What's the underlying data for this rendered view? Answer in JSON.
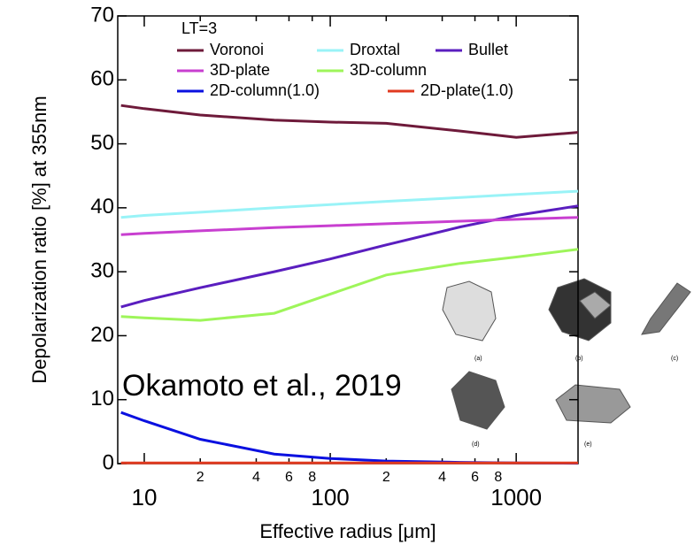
{
  "chart_data": {
    "type": "line",
    "x_label": "Effective radius [μm]",
    "y_label": "Depolarization ratio [%] at 355nm",
    "legend_title": "LT=3",
    "annotation": "Okamoto et al., 2019",
    "crystal_labels": [
      "(a)",
      "(b)",
      "(c)",
      "(d)",
      "(e)"
    ],
    "log_x": true,
    "xlim": [
      7.2,
      2150
    ],
    "ylim": [
      0,
      70
    ],
    "xticks": [
      10,
      {
        "value": 20,
        "label": "2"
      },
      {
        "value": 40,
        "label": "4"
      },
      {
        "value": 60,
        "label": "6"
      },
      {
        "value": 80,
        "label": "8"
      },
      100,
      {
        "value": 200,
        "label": "2"
      },
      {
        "value": 400,
        "label": "4"
      },
      {
        "value": 600,
        "label": "6"
      },
      {
        "value": 800,
        "label": "8"
      },
      1000
    ],
    "yticks": [
      0,
      10,
      20,
      30,
      40,
      50,
      60,
      70
    ],
    "x": [
      7.5,
      10,
      20,
      50,
      100,
      200,
      500,
      1000,
      2150
    ],
    "series": [
      {
        "name": "Voronoi",
        "color": "#6e1a3a",
        "values": [
          56,
          55.5,
          54.5,
          53.7,
          53.4,
          53.2,
          52,
          51,
          51.8
        ]
      },
      {
        "name": "Droxtal",
        "color": "#99f3f7",
        "values": [
          38.5,
          38.8,
          39.3,
          40,
          40.5,
          41,
          41.6,
          42.1,
          42.6
        ]
      },
      {
        "name": "Bullet",
        "color": "#5a1ebf",
        "values": [
          24.5,
          25.5,
          27.5,
          30,
          32,
          34.2,
          37,
          38.8,
          40.3
        ]
      },
      {
        "name": "3D-plate",
        "color": "#c83fd0",
        "values": [
          35.8,
          36,
          36.4,
          36.9,
          37.2,
          37.5,
          37.9,
          38.2,
          38.5
        ]
      },
      {
        "name": "3D-column",
        "color": "#9ef55a",
        "values": [
          23,
          22.8,
          22.4,
          23.5,
          26.5,
          29.5,
          31.3,
          32.3,
          33.5
        ]
      },
      {
        "name": "2D-column(1.0)",
        "color": "#0a10e0",
        "values": [
          8,
          6.7,
          3.8,
          1.5,
          0.8,
          0.4,
          0.2,
          0.1,
          0.05
        ]
      },
      {
        "name": "2D-plate(1.0)",
        "color": "#e03a20",
        "values": [
          0.1,
          0.1,
          0.1,
          0.1,
          0.1,
          0.1,
          0.1,
          0.1,
          0.1
        ]
      }
    ]
  }
}
